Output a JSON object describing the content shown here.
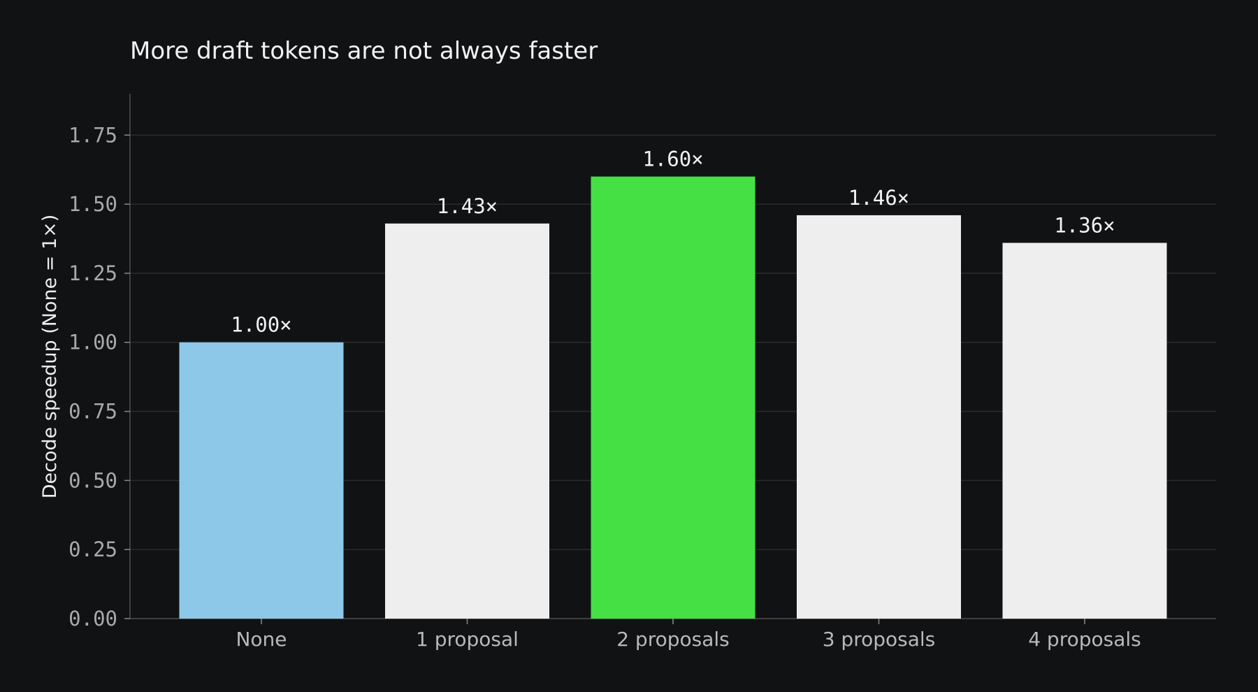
{
  "chart_data": {
    "type": "bar",
    "title": "More draft tokens are not always faster",
    "xlabel": "",
    "ylabel": "Decode speedup (None = 1×)",
    "categories": [
      "None",
      "1 proposal",
      "2 proposals",
      "3 proposals",
      "4 proposals"
    ],
    "values": [
      1.0,
      1.43,
      1.6,
      1.46,
      1.36
    ],
    "value_labels": [
      "1.00×",
      "1.43×",
      "1.60×",
      "1.46×",
      "1.36×"
    ],
    "bar_colors": [
      "#8ec8e8",
      "#eeeeee",
      "#44e044",
      "#eeeeee",
      "#eeeeee"
    ],
    "yticks": [
      0.0,
      0.25,
      0.5,
      0.75,
      1.0,
      1.25,
      1.5,
      1.75
    ],
    "ytick_labels": [
      "0.00",
      "0.25",
      "0.50",
      "0.75",
      "1.00",
      "1.25",
      "1.50",
      "1.75"
    ],
    "ylim": [
      0,
      1.9
    ],
    "grid": true,
    "background": "#111214"
  }
}
